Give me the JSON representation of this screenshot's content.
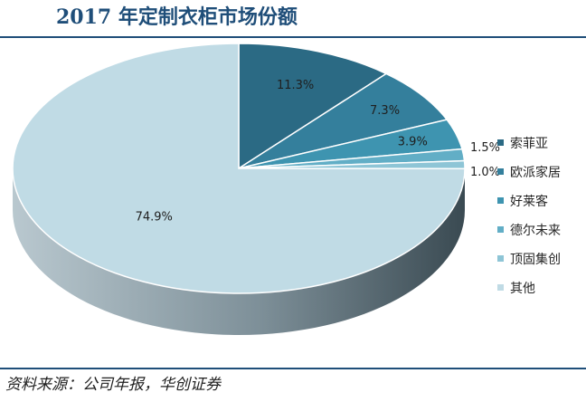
{
  "header": {
    "title": "2017 年定制衣柜市场份额"
  },
  "footer": {
    "source": "资料来源：公司年报，华创证券"
  },
  "chart_data": {
    "type": "pie",
    "title": "2017 年定制衣柜市场份额",
    "categories": [
      "索菲亚",
      "欧派家居",
      "好莱客",
      "德尔未来",
      "顶固集创",
      "其他"
    ],
    "values": [
      11.3,
      7.3,
      3.9,
      1.5,
      1.0,
      74.9
    ],
    "data_labels": [
      "11.3%",
      "7.3%",
      "3.9%",
      "1.5%",
      "1.0%",
      "74.9%"
    ],
    "colors": [
      "#2b6a84",
      "#347f9c",
      "#3e94b0",
      "#62aec6",
      "#8ec5d6",
      "#c0dbe5"
    ],
    "legend_position": "right",
    "style": "3d"
  }
}
